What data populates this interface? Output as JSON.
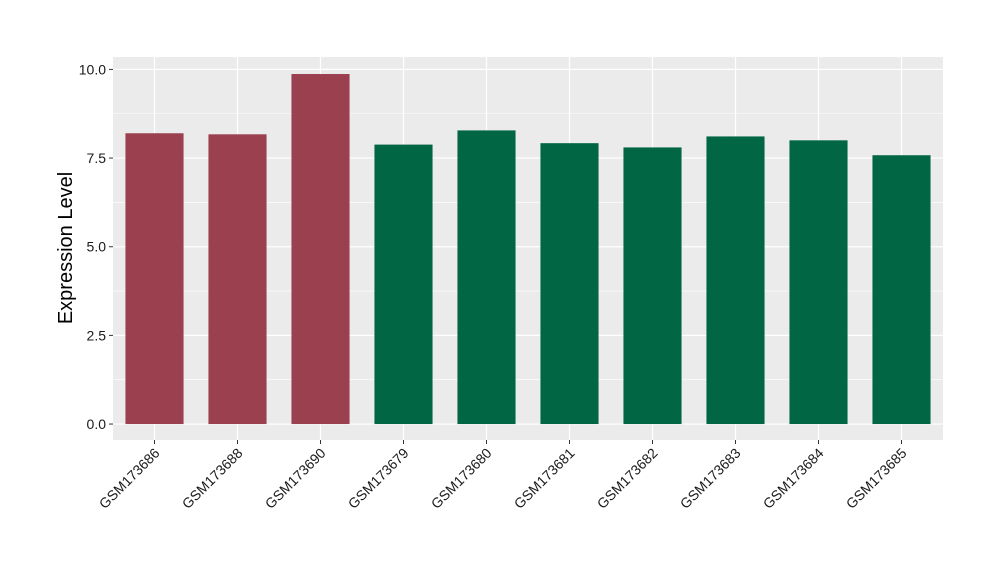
{
  "chart_data": {
    "type": "bar",
    "title": "",
    "xlabel": "",
    "ylabel": "Expression Level",
    "ylim": [
      -0.45,
      10.35
    ],
    "yticks": [
      0.0,
      2.5,
      5.0,
      7.5,
      10.0
    ],
    "ytick_labels": [
      "0.0",
      "2.5",
      "5.0",
      "7.5",
      "10.0"
    ],
    "grid": true,
    "legend": "none",
    "categories": [
      "GSM173686",
      "GSM173688",
      "GSM173690",
      "GSM173679",
      "GSM173680",
      "GSM173681",
      "GSM173682",
      "GSM173683",
      "GSM173684",
      "GSM173685"
    ],
    "values": [
      8.2,
      8.17,
      9.87,
      7.88,
      8.28,
      7.92,
      7.8,
      8.11,
      8.0,
      7.58
    ],
    "bar_colors": [
      "#9a404f",
      "#9a404f",
      "#9a404f",
      "#006644",
      "#006644",
      "#006644",
      "#006644",
      "#006644",
      "#006644",
      "#006644"
    ],
    "panel_background": "#ebebeb",
    "grid_color": "#ffffff"
  }
}
